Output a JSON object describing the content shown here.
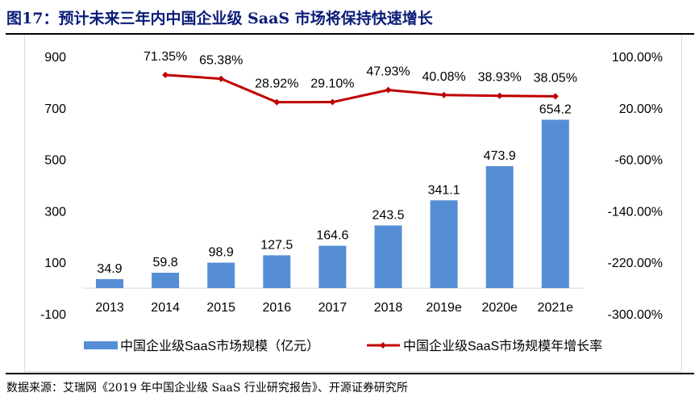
{
  "title": "图17：预计未来三年内中国企业级 SaaS 市场将保持快速增长",
  "source": "数据来源：艾瑞网《2019 年中国企业级 SaaS 行业研究报告》、开源证券研究所",
  "chart_data": {
    "type": "bar+line",
    "categories": [
      "2013",
      "2014",
      "2015",
      "2016",
      "2017",
      "2018",
      "2019e",
      "2020e",
      "2021e"
    ],
    "series": [
      {
        "name": "中国企业级SaaS市场规模（亿元）",
        "type": "bar",
        "axis": "left",
        "color": "#558ed5",
        "values": [
          34.9,
          59.8,
          98.9,
          127.5,
          164.6,
          243.5,
          341.1,
          473.9,
          654.2
        ],
        "labels": [
          "34.9",
          "59.8",
          "98.9",
          "127.5",
          "164.6",
          "243.5",
          "341.1",
          "473.9",
          "654.2"
        ]
      },
      {
        "name": "中国企业级SaaS市场规模年增长率",
        "type": "line",
        "axis": "right",
        "color": "#c00000",
        "values": [
          null,
          71.35,
          65.38,
          28.92,
          29.1,
          47.93,
          40.08,
          38.93,
          38.05
        ],
        "labels": [
          "",
          "71.35%",
          "65.38%",
          "28.92%",
          "29.10%",
          "47.93%",
          "40.08%",
          "38.93%",
          "38.05%"
        ]
      }
    ],
    "left_axis": {
      "ylim": [
        -100,
        900
      ],
      "ticks": [
        "900",
        "700",
        "500",
        "300",
        "100",
        "-100"
      ],
      "tick_values": [
        900,
        700,
        500,
        300,
        100,
        -100
      ]
    },
    "right_axis": {
      "ylim": [
        -300,
        100
      ],
      "ticks": [
        "100.00%",
        "20.00%",
        "-60.00%",
        "-140.00%",
        "-220.00%",
        "-300.00%"
      ],
      "tick_values": [
        100,
        20,
        -60,
        -140,
        -220,
        -300
      ]
    },
    "legend": [
      "中国企业级SaaS市场规模（亿元）",
      "中国企业级SaaS市场规模年增长率"
    ],
    "legend_position": "bottom",
    "grid": false
  }
}
